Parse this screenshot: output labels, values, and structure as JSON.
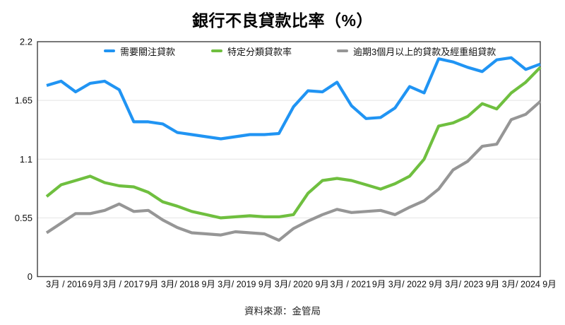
{
  "title": "銀行不良貸款比率（%）",
  "source": "資料來源：金管局",
  "legend": [
    {
      "label": "需要關注貸款",
      "color": "#2094f3"
    },
    {
      "label": "特定分類貸款率",
      "color": "#6fbf3f"
    },
    {
      "label": "逾期3個月以上的貸款及經重組貸款",
      "color": "#969696"
    }
  ],
  "colors": {
    "grid": "#e4e4e4",
    "plot_border": "#3f3f3f",
    "tick_text": "#0d0d0d"
  },
  "chart_data": {
    "type": "line",
    "title": "銀行不良貸款比率（%）",
    "ylim": [
      0,
      2.2
    ],
    "yticks": [
      "0",
      "0.55",
      "1.1",
      "1.65",
      "2.2"
    ],
    "grid": true,
    "legend_position": "top",
    "x_period": "quarterly",
    "label_every_n_points": 2,
    "x_labels": [
      "3月 / 2016",
      "9月",
      "3月 / 2017",
      "9月",
      "3月/ 2018",
      "9月",
      "3月/ 2019",
      "9月",
      "3月/ 2020",
      "9月",
      "3月 / 2021",
      "9月",
      "3月/ 2022",
      "9月",
      "3月/ 2023",
      "9月",
      "3月/ 2024",
      "9月"
    ],
    "series": [
      {
        "name": "需要關注貸款",
        "color": "#2094f3",
        "values": [
          1.79,
          1.83,
          1.73,
          1.81,
          1.83,
          1.75,
          1.45,
          1.45,
          1.43,
          1.35,
          1.33,
          1.31,
          1.29,
          1.31,
          1.33,
          1.33,
          1.34,
          1.59,
          1.74,
          1.73,
          1.82,
          1.6,
          1.48,
          1.49,
          1.58,
          1.78,
          1.72,
          2.04,
          2.01,
          1.96,
          1.92,
          2.03,
          2.05,
          1.94,
          1.99
        ]
      },
      {
        "name": "特定分類貸款率",
        "color": "#6fbf3f",
        "values": [
          0.75,
          0.86,
          0.9,
          0.94,
          0.88,
          0.85,
          0.84,
          0.79,
          0.7,
          0.66,
          0.61,
          0.58,
          0.55,
          0.56,
          0.57,
          0.56,
          0.56,
          0.58,
          0.78,
          0.9,
          0.92,
          0.9,
          0.86,
          0.82,
          0.87,
          0.94,
          1.1,
          1.41,
          1.44,
          1.5,
          1.62,
          1.57,
          1.72,
          1.82,
          1.96
        ]
      },
      {
        "name": "逾期3個月以上的貸款及經重組貸款",
        "color": "#969696",
        "values": [
          0.41,
          0.5,
          0.59,
          0.59,
          0.62,
          0.68,
          0.61,
          0.62,
          0.53,
          0.46,
          0.41,
          0.4,
          0.39,
          0.42,
          0.41,
          0.4,
          0.34,
          0.45,
          0.52,
          0.58,
          0.63,
          0.6,
          0.61,
          0.62,
          0.58,
          0.65,
          0.71,
          0.82,
          1.0,
          1.08,
          1.22,
          1.24,
          1.47,
          1.52,
          1.64
        ]
      }
    ]
  }
}
